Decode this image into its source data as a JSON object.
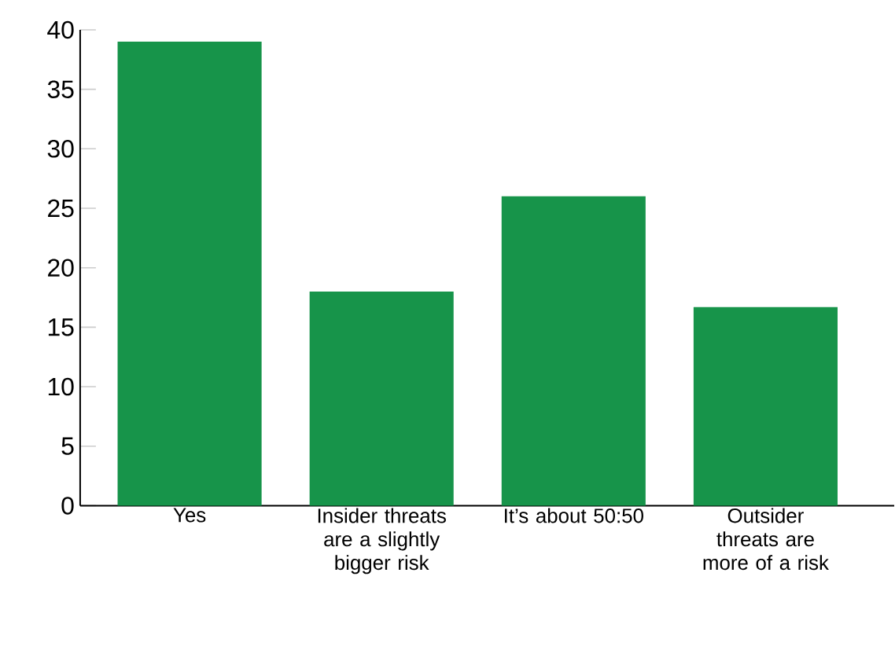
{
  "chart_data": {
    "type": "bar",
    "categories": [
      "Yes",
      "Insider threats are a slightly bigger risk",
      "It’s about 50:50",
      "Outsider threats are more of a risk"
    ],
    "values": [
      39,
      18,
      26,
      16.7
    ],
    "color": "#17944a",
    "ylim": [
      0,
      40
    ],
    "yticks": [
      0,
      5,
      10,
      15,
      20,
      25,
      30,
      35,
      40
    ],
    "grid": false
  }
}
